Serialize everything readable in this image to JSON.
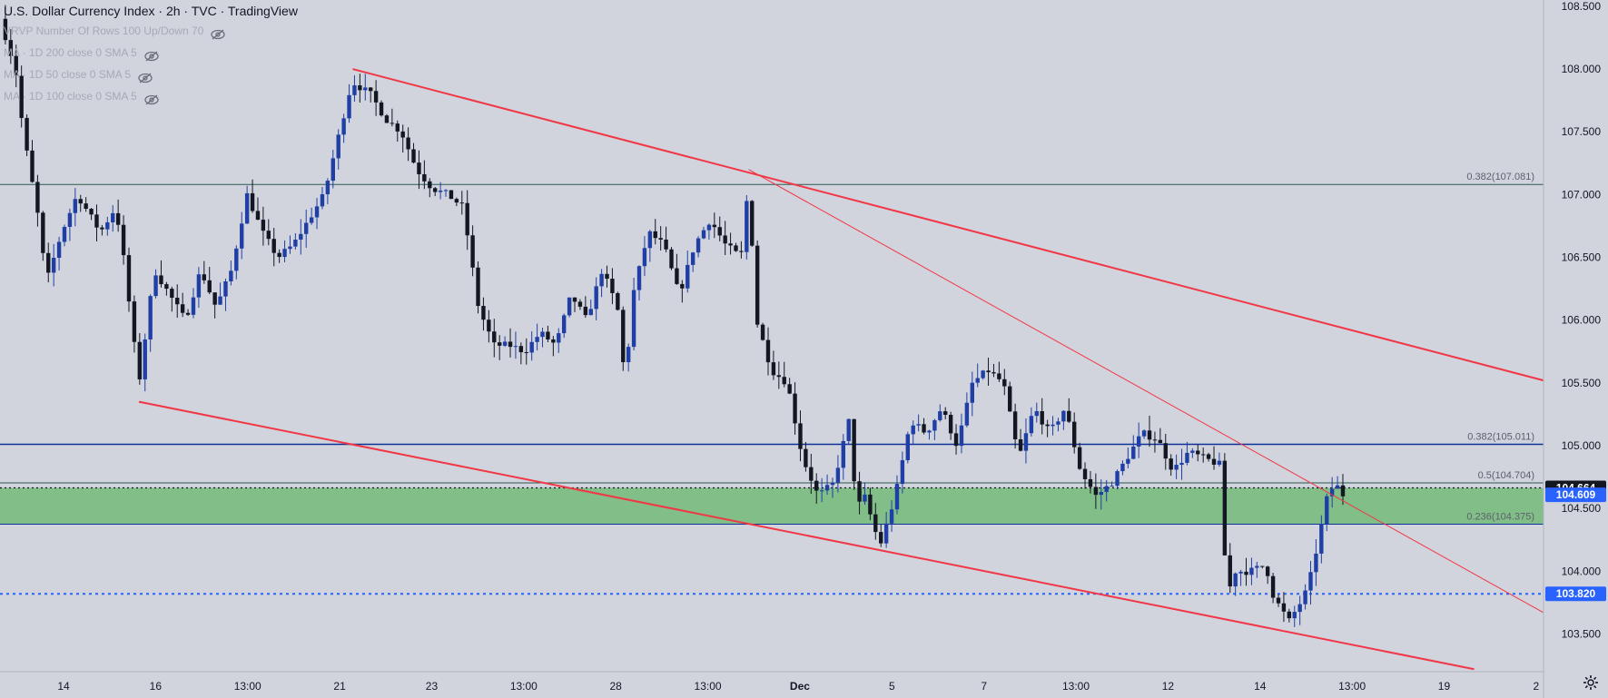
{
  "legend": {
    "title": "U.S. Dollar Currency Index · 2h · TVC · TradingView",
    "indicators": [
      {
        "label": "VRVP Number Of Rows 100 Up/Down 70"
      },
      {
        "label": "MA · 1D 200 close 0 SMA 5"
      },
      {
        "label": "MA · 1D 50 close 0 SMA 5"
      },
      {
        "label": "MA · 1D 100 close 0 SMA 5"
      }
    ]
  },
  "icons": {
    "visibility": "eye-crossed-icon",
    "settings": "gear-icon"
  },
  "colors": {
    "background": "#d1d4dc",
    "up_candle": "#1f3fa6",
    "down_candle": "#131722",
    "trendline": "#f23645",
    "zone": "#4caf50",
    "fib_line": "#0c3299",
    "support_dotted": "#2962ff",
    "price_badge_dark": "#131722",
    "price_badge_blue": "#2962ff"
  },
  "chart_data": {
    "type": "candlestick",
    "title": "U.S. Dollar Currency Index · 2h · TVC · TradingView",
    "y_axis": {
      "position": "right",
      "range": [
        103.2,
        108.55
      ],
      "ticks": [
        "108.500",
        "108.000",
        "107.500",
        "107.000",
        "106.500",
        "106.000",
        "105.500",
        "105.000",
        "104.500",
        "104.000",
        "103.500"
      ]
    },
    "x_axis": {
      "labels": [
        "14",
        "16",
        "13:00",
        "21",
        "23",
        "13:00",
        "28",
        "13:00",
        "Dec",
        "5",
        "7",
        "13:00",
        "12",
        "14",
        "13:00",
        "19",
        "2"
      ]
    },
    "horizontal_levels": [
      {
        "label": "0.382(107.081)",
        "value": 107.081
      },
      {
        "label": "0.382(105.011)",
        "value": 105.011
      },
      {
        "label": "0.5(104.704)",
        "value": 104.704
      },
      {
        "label": "0.236(104.375)",
        "value": 104.375
      }
    ],
    "zone": {
      "from": 104.375,
      "to": 104.664
    },
    "dotted_levels": [
      {
        "value": 104.664,
        "style": "dark"
      },
      {
        "value": 103.82,
        "style": "blue"
      }
    ],
    "price_badges": [
      {
        "label": "104.664",
        "value": 104.664,
        "style": "dark"
      },
      {
        "label": "104.609",
        "value": 104.609,
        "style": "blue"
      },
      {
        "label": "103.820",
        "value": 103.82,
        "style": "blue"
      }
    ],
    "last_price": 104.609,
    "trendlines": [
      {
        "name": "upper-channel",
        "from": {
          "t": 0.2285,
          "v": 108.0
        },
        "to": {
          "t": 1.0,
          "v": 105.52
        }
      },
      {
        "name": "lower-channel",
        "from": {
          "t": 0.09,
          "v": 105.35
        },
        "to": {
          "t": 0.955,
          "v": 103.22
        }
      },
      {
        "name": "inner-trendline",
        "from": {
          "t": 0.485,
          "v": 107.2
        },
        "to": {
          "t": 1.0,
          "v": 103.67
        }
      }
    ],
    "anchors": [
      [
        0.0,
        108.4
      ],
      [
        0.01,
        108.0
      ],
      [
        0.015,
        107.5
      ],
      [
        0.025,
        106.8
      ],
      [
        0.03,
        106.3
      ],
      [
        0.04,
        106.7
      ],
      [
        0.05,
        107.0
      ],
      [
        0.055,
        106.9
      ],
      [
        0.065,
        106.7
      ],
      [
        0.075,
        106.9
      ],
      [
        0.08,
        106.5
      ],
      [
        0.09,
        105.5
      ],
      [
        0.1,
        106.4
      ],
      [
        0.11,
        106.2
      ],
      [
        0.12,
        106.0
      ],
      [
        0.13,
        106.4
      ],
      [
        0.14,
        106.1
      ],
      [
        0.15,
        106.4
      ],
      [
        0.16,
        107.0
      ],
      [
        0.17,
        106.7
      ],
      [
        0.18,
        106.5
      ],
      [
        0.19,
        106.6
      ],
      [
        0.2,
        106.8
      ],
      [
        0.21,
        107.0
      ],
      [
        0.22,
        107.5
      ],
      [
        0.228,
        107.9
      ],
      [
        0.24,
        107.8
      ],
      [
        0.25,
        107.6
      ],
      [
        0.26,
        107.5
      ],
      [
        0.27,
        107.2
      ],
      [
        0.28,
        107.05
      ],
      [
        0.29,
        107.0
      ],
      [
        0.3,
        106.9
      ],
      [
        0.305,
        106.5
      ],
      [
        0.31,
        106.1
      ],
      [
        0.32,
        105.8
      ],
      [
        0.33,
        105.8
      ],
      [
        0.34,
        105.75
      ],
      [
        0.35,
        105.9
      ],
      [
        0.36,
        105.8
      ],
      [
        0.37,
        106.2
      ],
      [
        0.38,
        106.0
      ],
      [
        0.39,
        106.4
      ],
      [
        0.4,
        106.1
      ],
      [
        0.405,
        105.5
      ],
      [
        0.41,
        106.2
      ],
      [
        0.42,
        106.7
      ],
      [
        0.43,
        106.6
      ],
      [
        0.44,
        106.2
      ],
      [
        0.45,
        106.6
      ],
      [
        0.46,
        106.8
      ],
      [
        0.47,
        106.6
      ],
      [
        0.48,
        106.5
      ],
      [
        0.485,
        107.1
      ],
      [
        0.49,
        106.0
      ],
      [
        0.5,
        105.6
      ],
      [
        0.51,
        105.5
      ],
      [
        0.52,
        104.9
      ],
      [
        0.53,
        104.6
      ],
      [
        0.54,
        104.7
      ],
      [
        0.55,
        105.2
      ],
      [
        0.555,
        104.5
      ],
      [
        0.56,
        104.6
      ],
      [
        0.57,
        104.2
      ],
      [
        0.58,
        104.6
      ],
      [
        0.59,
        105.2
      ],
      [
        0.6,
        105.1
      ],
      [
        0.61,
        105.3
      ],
      [
        0.62,
        105.0
      ],
      [
        0.63,
        105.5
      ],
      [
        0.64,
        105.6
      ],
      [
        0.65,
        105.5
      ],
      [
        0.66,
        104.9
      ],
      [
        0.67,
        105.3
      ],
      [
        0.68,
        105.1
      ],
      [
        0.69,
        105.3
      ],
      [
        0.7,
        104.8
      ],
      [
        0.71,
        104.6
      ],
      [
        0.72,
        104.7
      ],
      [
        0.73,
        104.9
      ],
      [
        0.74,
        105.1
      ],
      [
        0.75,
        105.05
      ],
      [
        0.76,
        104.8
      ],
      [
        0.77,
        104.95
      ],
      [
        0.78,
        104.9
      ],
      [
        0.79,
        104.85
      ],
      [
        0.795,
        103.8
      ],
      [
        0.8,
        104.0
      ],
      [
        0.81,
        104.0
      ],
      [
        0.82,
        104.05
      ],
      [
        0.825,
        103.8
      ],
      [
        0.835,
        103.6
      ],
      [
        0.845,
        103.8
      ],
      [
        0.85,
        104.0
      ],
      [
        0.855,
        104.3
      ],
      [
        0.86,
        104.6
      ],
      [
        0.865,
        104.7
      ],
      [
        0.87,
        104.609
      ]
    ]
  }
}
